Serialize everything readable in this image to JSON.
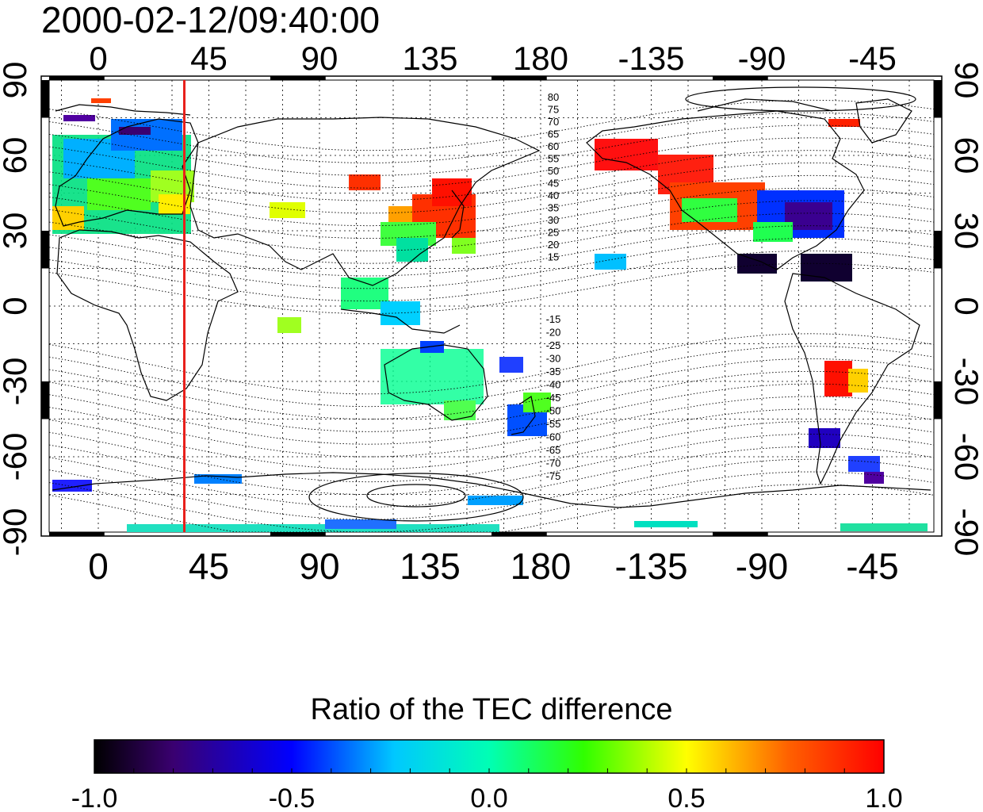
{
  "title": "2000-02-12/09:40:00",
  "map": {
    "top_lon_labels": [
      "0",
      "45",
      "90",
      "135",
      "180",
      "-135",
      "-90",
      "-45"
    ],
    "bottom_lon_labels": [
      "0",
      "45",
      "90",
      "135",
      "180",
      "-135",
      "-90",
      "-45"
    ],
    "left_lat_labels": [
      "90",
      "60",
      "30",
      "0",
      "-30",
      "-60",
      "-90"
    ],
    "right_lat_labels": [
      "90",
      "60",
      "30",
      "0",
      "-30",
      "-60",
      "-90"
    ],
    "marker_longitude": 35,
    "marker_color": "#e8201c",
    "contour_labels_north": [
      "80",
      "75",
      "70",
      "65",
      "60",
      "55",
      "50",
      "45",
      "40",
      "35",
      "30",
      "25",
      "20",
      "15"
    ],
    "contour_labels_south": [
      "-15",
      "-20",
      "-25",
      "-30",
      "-35",
      "-40",
      "-45",
      "-50",
      "-55",
      "-60",
      "-65",
      "-70",
      "-75"
    ]
  },
  "colorbar": {
    "title": "Ratio of the TEC difference",
    "min": -1.0,
    "max": 1.0,
    "tick_labels": [
      "-1.0",
      "-0.5",
      "0.0",
      "0.5",
      "1.0"
    ]
  }
}
